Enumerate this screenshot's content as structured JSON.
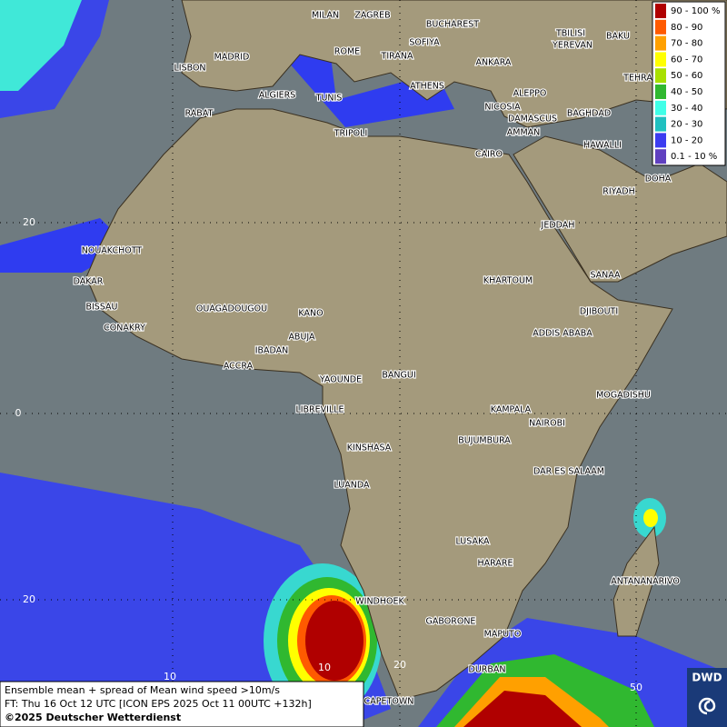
{
  "map": {
    "legend": [
      {
        "label": "90 - 100 %",
        "color": "#b00000"
      },
      {
        "label": "80 - 90",
        "color": "#ff5a00"
      },
      {
        "label": "70 - 80",
        "color": "#ffa000"
      },
      {
        "label": "60 - 70",
        "color": "#ffff00"
      },
      {
        "label": "50 - 60",
        "color": "#a8e000"
      },
      {
        "label": "40 - 50",
        "color": "#30b830"
      },
      {
        "label": "30 - 40",
        "color": "#40ffe8"
      },
      {
        "label": "20 - 30",
        "color": "#20c0c0"
      },
      {
        "label": "10 - 20",
        "color": "#3c3cf0"
      },
      {
        "label": "0.1 - 10 %",
        "color": "#6040c0"
      }
    ],
    "cities": [
      "MILAN",
      "ZAGREB",
      "BUCHAREST",
      "BAKU",
      "TBILISI",
      "YEREVAN",
      "TEHRA",
      "SOFIYA",
      "ROME",
      "TIRANA",
      "ANKARA",
      "MADRID",
      "LISBON",
      "ALGIERS",
      "TUNIS",
      "ATHENS",
      "ALEPPO",
      "NICOSIA",
      "BAGHDAD",
      "RABAT",
      "TRIPOLI",
      "DAMASCUS",
      "AMMAN",
      "HAWALLI",
      "CAIRO",
      "DOHA",
      "RIYADH",
      "JEDDAH",
      "NOUAKCHOTT",
      "SANAA",
      "DAKAR",
      "KHARTOUM",
      "BISSAU",
      "DJIBOUTI",
      "OUAGADOUGOU",
      "KANO",
      "CONAKRY",
      "ABUJA",
      "ADDIS ABABA",
      "IBADAN",
      "ACCRA",
      "YAOUNDE",
      "BANGUI",
      "MOGADISHU",
      "LIBREVILLE",
      "KAMPALA",
      "NAIROBI",
      "KINSHASA",
      "BUJUMBURA",
      "DAR ES SALAAM",
      "LUANDA",
      "LUSAKA",
      "HARARE",
      "ANTANANARIVO",
      "WINDHOEK",
      "GABORONE",
      "MAPUTO",
      "DURBAN",
      "CAPETOWN"
    ],
    "grid_labels": [
      "20",
      "0",
      "20",
      "10",
      "20",
      "10",
      "50"
    ],
    "footer": [
      "Ensemble mean + spread of Mean wind speed >10m/s",
      "FT: Thu 16 Oct 12 UTC [ICON EPS 2025 Oct 11 00UTC +132h]",
      "©2025 Deutscher Wetterdienst"
    ],
    "logo": "DWD"
  }
}
